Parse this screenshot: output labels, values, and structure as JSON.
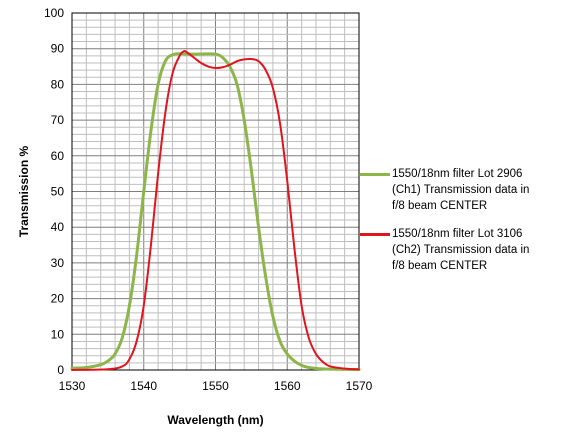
{
  "chart_data": {
    "type": "line",
    "xlabel": "Wavelength (nm)",
    "ylabel": "Transmission %",
    "xlim": [
      1530,
      1570
    ],
    "ylim": [
      0,
      100
    ],
    "xticks": [
      "1530",
      "1540",
      "1550",
      "1560",
      "1570"
    ],
    "yticks": [
      "0",
      "10",
      "20",
      "30",
      "40",
      "50",
      "60",
      "70",
      "80",
      "90",
      "100"
    ],
    "grid": true,
    "legend_position": "right",
    "series": [
      {
        "name": "1550/18nm filter Lot 2906 (Ch1) Transmission  data in f/8 beam CENTER",
        "name_lines": [
          "1550/18nm filter Lot 2906",
          "(Ch1) Transmission  data in",
          "f/8 beam CENTER"
        ],
        "color": "#8db54a",
        "points": [
          [
            1530,
            0.5
          ],
          [
            1532,
            0.7
          ],
          [
            1534,
            1.5
          ],
          [
            1535,
            2.5
          ],
          [
            1536,
            4.5
          ],
          [
            1537,
            9
          ],
          [
            1538,
            18
          ],
          [
            1539,
            32
          ],
          [
            1540,
            50
          ],
          [
            1541,
            67
          ],
          [
            1542,
            80
          ],
          [
            1543,
            86.5
          ],
          [
            1544,
            88.3
          ],
          [
            1545,
            88.6
          ],
          [
            1546,
            88.5
          ],
          [
            1548,
            88.5
          ],
          [
            1550,
            88.5
          ],
          [
            1551,
            87.5
          ],
          [
            1552,
            85
          ],
          [
            1553,
            80
          ],
          [
            1554,
            70
          ],
          [
            1555,
            56
          ],
          [
            1556,
            40
          ],
          [
            1557,
            26
          ],
          [
            1558,
            15
          ],
          [
            1559,
            8
          ],
          [
            1560,
            4.5
          ],
          [
            1561,
            2.5
          ],
          [
            1562,
            1.3
          ],
          [
            1563,
            0.7
          ],
          [
            1565,
            0.3
          ],
          [
            1570,
            0.1
          ]
        ]
      },
      {
        "name": "1550/18nm filter Lot 3106 (Ch2) Transmission  data in f/8 beam CENTER",
        "name_lines": [
          "1550/18nm filter Lot 3106",
          "(Ch2) Transmission  data in",
          "f/8 beam CENTER"
        ],
        "color": "#e0141e",
        "points": [
          [
            1530,
            0
          ],
          [
            1535,
            0.2
          ],
          [
            1537,
            1
          ],
          [
            1538,
            3
          ],
          [
            1539,
            8
          ],
          [
            1540,
            18
          ],
          [
            1541,
            35
          ],
          [
            1542,
            55
          ],
          [
            1543,
            72
          ],
          [
            1544,
            83
          ],
          [
            1545,
            88
          ],
          [
            1545.6,
            89.3
          ],
          [
            1546,
            89
          ],
          [
            1547,
            87.5
          ],
          [
            1548,
            86
          ],
          [
            1549,
            85
          ],
          [
            1550,
            84.6
          ],
          [
            1551,
            84.8
          ],
          [
            1552,
            85.5
          ],
          [
            1553,
            86.5
          ],
          [
            1554,
            87
          ],
          [
            1555,
            87.1
          ],
          [
            1556,
            86.5
          ],
          [
            1557,
            84
          ],
          [
            1558,
            79
          ],
          [
            1559,
            69
          ],
          [
            1560,
            53
          ],
          [
            1561,
            34
          ],
          [
            1562,
            18
          ],
          [
            1563,
            9
          ],
          [
            1564,
            4.5
          ],
          [
            1565,
            2.2
          ],
          [
            1566,
            1
          ],
          [
            1568,
            0.4
          ],
          [
            1570,
            0.2
          ]
        ]
      }
    ]
  }
}
